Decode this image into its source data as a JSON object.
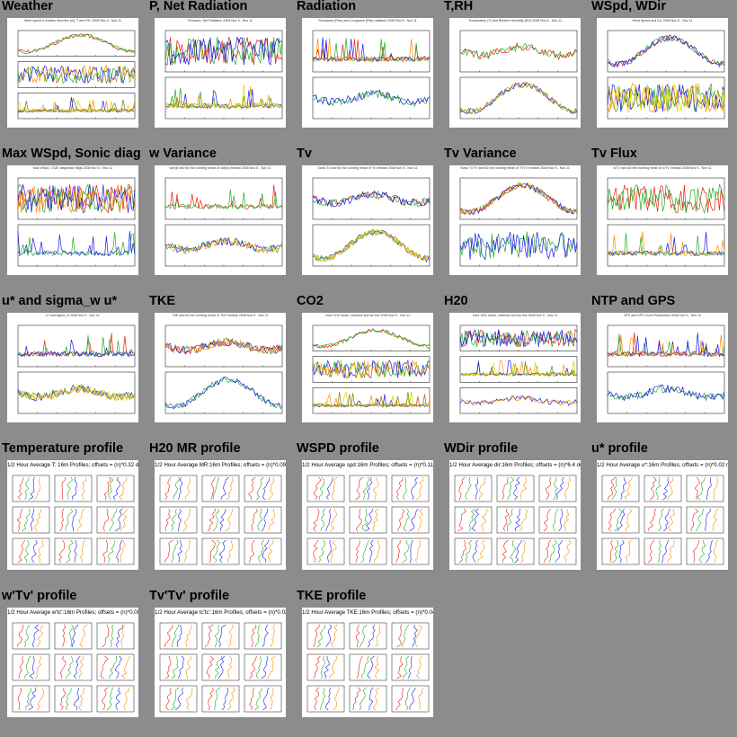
{
  "colors": {
    "background": "#8c8c8c",
    "panel": "#ffffff",
    "red": "#e8200c",
    "green": "#22aa22",
    "blue": "#1a1aee",
    "orange": "#ff8c00",
    "yellow": "#d8d800",
    "olive": "#7c7c00"
  },
  "plots": [
    {
      "title": "Weather",
      "caption": "Wind speed & median direction (m), T and RH, 2008 Nov 5 - Nov 11",
      "kind": "ts3"
    },
    {
      "title": "P, Net Radiation",
      "caption": "Pressure, Net Radiation 2008 Nov 5 - Nov 11",
      "kind": "ts2"
    },
    {
      "title": "Radiation",
      "caption": "Shortwave (Rsw) and Longwave (Rlw) radiation 2008 Nov 5 - Nov 11",
      "kind": "ts2"
    },
    {
      "title": "T,RH",
      "caption": "Temperature (T) and Relative Humidity (RH) 2008 Nov 5 - Nov 11",
      "kind": "ts2"
    },
    {
      "title": "WSpd, WDir",
      "caption": "Wind Speed and Dir, 2008 Nov 5 - Nov 11",
      "kind": "ts2"
    },
    {
      "title": "Max WSpd, Sonic diag",
      "caption": "Max WSpd, CSAT diagnostic flags 2008 Nov 5 - Nov 11",
      "kind": "ts2"
    },
    {
      "title": "w Variance",
      "caption": "var(w) and 60 min running mean of var(w) median 2008 Nov 5 - Nov 11",
      "kind": "ts2"
    },
    {
      "title": "Tv",
      "caption": "Sonic Tv and 60 min running mean of Tv median 2008 Nov 5 - Nov 11",
      "kind": "ts2"
    },
    {
      "title": "Tv Variance",
      "caption": "Sonic Tv'Tv' and 60 min running mean of Tv'Tv' median 2008 Nov 5 - Nov 11",
      "kind": "ts2"
    },
    {
      "title": "Tv Flux",
      "caption": "w'Tv' and 60 min running mean of w'Tv' median 2008 Nov 5 - Nov 11",
      "kind": "ts2"
    },
    {
      "title": "u* and sigma_w u*",
      "caption": "u* and sigma_w 2008 Nov 5 - Nov 11",
      "kind": "ts2"
    },
    {
      "title": "TKE",
      "caption": "TKE and 60 min running mean of TKE median 2008 Nov 5 - Nov 11",
      "kind": "ts2"
    },
    {
      "title": "CO2",
      "caption": "Licor CO2 mean, variance and wc flux 2008 Nov 5 - Nov 11",
      "kind": "ts3"
    },
    {
      "title": "H20",
      "caption": "Licor H2O mean, variance and wc flux 2008 Nov 5 - Nov 11",
      "kind": "ts3"
    },
    {
      "title": "NTP and GPS",
      "caption": "NTP and GPS Clock Parameters 2008 Nov 5 - Nov 11",
      "kind": "ts2"
    },
    {
      "title": "Temperature profile",
      "caption": "1/2 Hour Average T: 16m Profiles; offsets = (n)*0.32 degC",
      "kind": "profile"
    },
    {
      "title": "H20 MR profile",
      "caption": "1/2 Hour Average MR:16m Profiles; offsets = (n)*0.092 g/kg",
      "kind": "profile"
    },
    {
      "title": "WSPD profile",
      "caption": "1/2 Hour Average spd:16m Profiles; offsets = (n)*0.11 m/s",
      "kind": "profile"
    },
    {
      "title": "WDir profile",
      "caption": "1/2 Hour Average dir:16m Profiles; offsets = (n)*6.4 deg",
      "kind": "profile"
    },
    {
      "title": "u* profile",
      "caption": "1/2 Hour Average u*:16m Profiles; offsets = (n)*0.02 m/s",
      "kind": "profile"
    },
    {
      "title": "w'Tv' profile",
      "caption": "1/2 Hour Average w'tc':16m Profiles; offsets = (n)*0.006 m/s.degC",
      "kind": "profile"
    },
    {
      "title": "Tv'Tv' profile",
      "caption": "1/2 Hour Average tc'tc':16m Profiles; offsets = (n)*0.024 (degC)^2",
      "kind": "profile"
    },
    {
      "title": "TKE profile",
      "caption": "1/2 Hour Average TKE:16m Profiles; offsets = (n)*0.048 (m/s)^2",
      "kind": "profile"
    }
  ]
}
